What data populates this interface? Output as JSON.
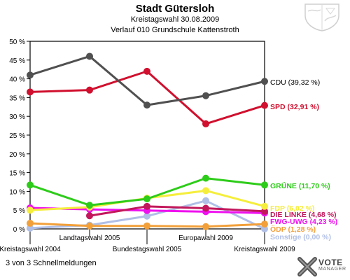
{
  "header": {
    "title": "Stadt Gütersloh",
    "subtitle": "Kreistagswahl 30.08.2009",
    "location": "Verlauf 010 Grundschule Kattenstroth"
  },
  "footer": {
    "note": "3 von 3 Schnellmeldungen"
  },
  "brand": {
    "word1": "VOTE",
    "word2": "MANAGER"
  },
  "chart_data": {
    "type": "line",
    "title": "",
    "xlabel": "",
    "ylabel": "",
    "ylim": [
      0,
      50
    ],
    "y_ticks": [
      0,
      5,
      10,
      15,
      20,
      25,
      30,
      35,
      40,
      45,
      50
    ],
    "y_tick_suffix": " %",
    "grid": false,
    "legend": "right, labels at line ends",
    "categories": [
      "Kreistagswahl 2004",
      "Landtagswahl 2005",
      "Bundestagswahl 2005",
      "Europawahl 2009",
      "Kreistagswahl 2009"
    ],
    "series": [
      {
        "name": "CDU",
        "label": "CDU (39,32 %)",
        "color": "#505050",
        "label_color": "#000000",
        "values": [
          41.0,
          46.0,
          33.0,
          35.5,
          39.32
        ]
      },
      {
        "name": "SPD",
        "label": "SPD (32,91 %)",
        "color": "#d0102e",
        "label_color": "#d0102e",
        "values": [
          36.5,
          37.0,
          42.0,
          28.0,
          32.91
        ]
      },
      {
        "name": "GRÜNE",
        "label": "GRÜNE (11,70 %)",
        "color": "#2ecc1a",
        "label_color": "#2ecc1a",
        "values": [
          11.7,
          6.3,
          8.0,
          13.5,
          11.7
        ]
      },
      {
        "name": "FDP",
        "label": "FDP (6,02 %)",
        "color": "#f5ee3c",
        "label_color": "#f5ee3c",
        "values": [
          5.0,
          5.8,
          8.2,
          10.2,
          6.02
        ]
      },
      {
        "name": "DIE LINKE",
        "label": "DIE LINKE (4,68 %)",
        "color": "#c2185b",
        "label_color": "#c2185b",
        "values": [
          null,
          3.5,
          6.0,
          5.5,
          4.68
        ]
      },
      {
        "name": "FWG-UWG",
        "label": "FWG-UWG (4,23 %)",
        "color": "#ee11ee",
        "label_color": "#ee11ee",
        "values": [
          5.6,
          5.2,
          4.9,
          4.6,
          4.23
        ]
      },
      {
        "name": "ÖDP",
        "label": "ÖDP (1,28 %)",
        "color": "#f2a03a",
        "label_color": "#f2a03a",
        "values": [
          1.5,
          0.8,
          0.8,
          0.6,
          1.28
        ]
      },
      {
        "name": "Sonstige",
        "label": "Sonstige (0,00 %)",
        "color": "#b0bfe6",
        "label_color": "#b0bfe6",
        "values": [
          0.2,
          1.0,
          3.4,
          7.5,
          0.0
        ]
      }
    ]
  }
}
